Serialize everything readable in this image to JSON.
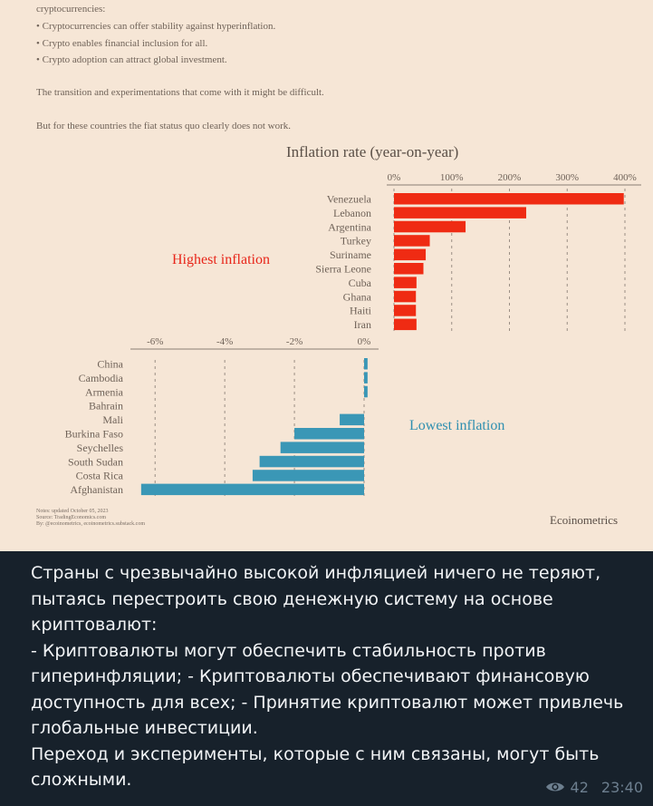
{
  "post": {
    "image_text": {
      "intro_lines": [
        "cryptocurrencies:",
        "• Cryptocurrencies can offer stability against hyperinflation.",
        "• Crypto enables financial inclusion for all.",
        "• Crypto adoption can attract global investment.",
        "The transition and experimentations that come with it might be difficult.",
        "But for these countries the fiat status quo clearly does not work."
      ],
      "highest_label": "Highest inflation",
      "lowest_label": "Lowest inflation",
      "notes": [
        "Notes: updated October 05, 2023",
        "Source: TradingEconomics.com",
        "By: @ecoinometrics, ecoinometrics.substack.com"
      ],
      "brand": "Ecoinometrics"
    },
    "caption_paragraphs": [
      "Страны с чрезвычайно высокой инфляцией ничего не теряют, пытаясь перестроить свою денежную систему на основе криптовалют:",
      "- Криптовалюты могут обеспечить стабильность против гиперинфляции; - Криптовалюты обеспечивают финансовую доступность для всех; - Принятие криптовалют может привлечь глобальные инвестиции.",
      "Переход и эксперименты, которые с ним связаны, могут быть сложными."
    ],
    "views": "42",
    "time": "23:40",
    "icons": {
      "views": "eye-icon"
    }
  },
  "colors": {
    "background": "#17212b",
    "image_background": "#f6e6d6",
    "high_bar": "#ef2b13",
    "low_bar": "#3a97b6",
    "text_muted": "#6d7f8f"
  },
  "chart_data": [
    {
      "type": "bar",
      "orientation": "horizontal",
      "title": "Inflation rate (year-on-year)",
      "categories": [
        "Venezuela",
        "Lebanon",
        "Argentina",
        "Turkey",
        "Suriname",
        "Sierra Leone",
        "Cuba",
        "Ghana",
        "Haiti",
        "Iran"
      ],
      "values": [
        398,
        229,
        124,
        62,
        55,
        51,
        39,
        38,
        38,
        39
      ],
      "xlim": [
        0,
        400
      ],
      "ticks": [
        "0%",
        "100%",
        "200%",
        "300%",
        "400%"
      ],
      "tick_values": [
        0,
        100,
        200,
        300,
        400
      ],
      "grid": true
    },
    {
      "type": "bar",
      "orientation": "horizontal",
      "categories": [
        "China",
        "Cambodia",
        "Armenia",
        "Bahrain",
        "Mali",
        "Burkina Faso",
        "Seychelles",
        "South Sudan",
        "Costa Rica",
        "Afghanistan"
      ],
      "values": [
        0.1,
        0.1,
        0.1,
        0.0,
        -0.7,
        -2.0,
        -2.4,
        -3.0,
        -3.2,
        -6.4
      ],
      "xlim": [
        -6.5,
        0
      ],
      "ticks": [
        "-6%",
        "-4%",
        "-2%",
        "0%"
      ],
      "tick_values": [
        -6,
        -4,
        -2,
        0
      ],
      "grid": true
    }
  ]
}
